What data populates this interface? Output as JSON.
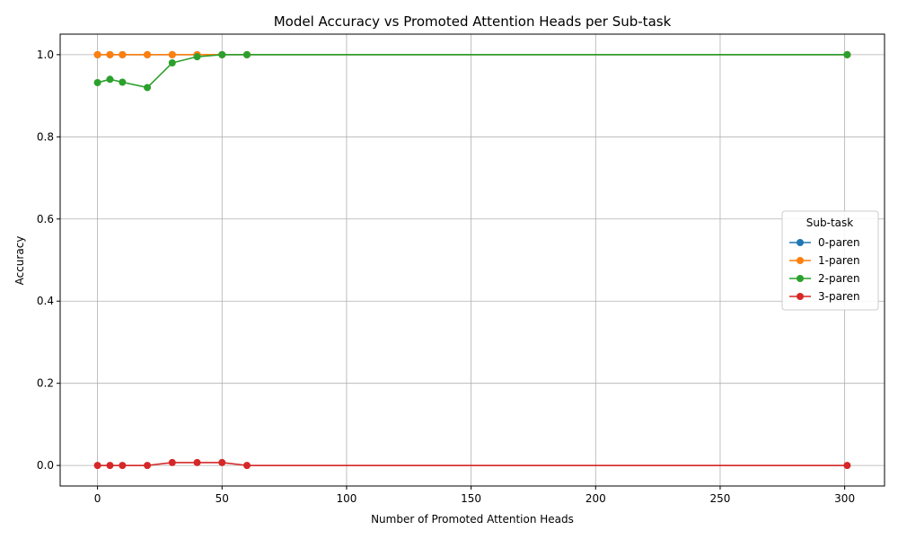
{
  "chart_data": {
    "type": "line",
    "title": "Model Accuracy vs Promoted Attention Heads per Sub-task",
    "xlabel": "Number of Promoted Attention Heads",
    "ylabel": "Accuracy",
    "xlim": [
      -15,
      316
    ],
    "ylim": [
      -0.05,
      1.05
    ],
    "xticks": [
      0,
      50,
      100,
      150,
      200,
      250,
      300
    ],
    "yticks": [
      0.0,
      0.2,
      0.4,
      0.6,
      0.8,
      1.0
    ],
    "grid": true,
    "legend": {
      "title": "Sub-task",
      "placement": "center-right"
    },
    "x": [
      0,
      5,
      10,
      20,
      30,
      40,
      50,
      60,
      301
    ],
    "series": [
      {
        "name": "0-paren",
        "color": "#1f77b4",
        "values": [
          1.0,
          1.0,
          1.0,
          1.0,
          1.0,
          1.0,
          1.0,
          1.0,
          1.0
        ]
      },
      {
        "name": "1-paren",
        "color": "#ff7f0e",
        "values": [
          1.0,
          1.0,
          1.0,
          1.0,
          1.0,
          1.0,
          1.0,
          1.0,
          1.0
        ]
      },
      {
        "name": "2-paren",
        "color": "#2ca02c",
        "values": [
          0.932,
          0.94,
          0.933,
          0.92,
          0.98,
          0.995,
          1.0,
          1.0,
          1.0
        ]
      },
      {
        "name": "3-paren",
        "color": "#d62728",
        "values": [
          0.0,
          0.0,
          0.0,
          0.0,
          0.007,
          0.007,
          0.007,
          0.0,
          0.0
        ]
      }
    ]
  }
}
